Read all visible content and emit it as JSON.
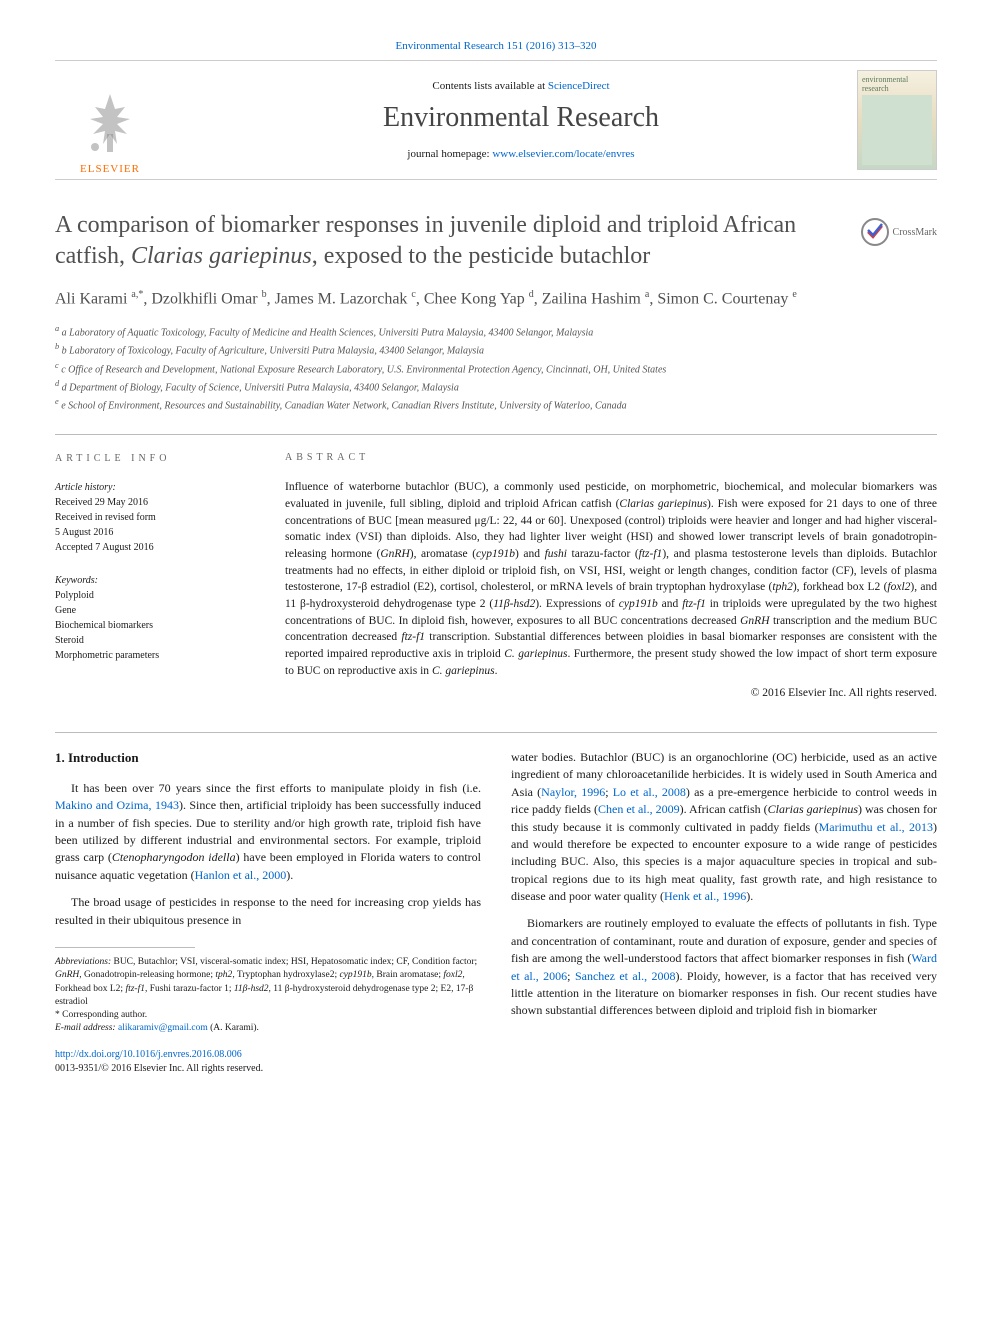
{
  "header": {
    "top_link": "Environmental Research 151 (2016) 313–320",
    "contents_prefix": "Contents lists available at ",
    "contents_link": "ScienceDirect",
    "journal": "Environmental Research",
    "homepage_prefix": "journal homepage: ",
    "homepage_link": "www.elsevier.com/locate/envres",
    "elsevier_label": "ELSEVIER",
    "cover_title": "environmental research"
  },
  "crossmark": {
    "label": "CrossMark"
  },
  "article": {
    "title_html": "A comparison of biomarker responses in juvenile diploid and triploid African catfish, <em>Clarias gariepinus</em>, exposed to the pesticide butachlor",
    "authors_html": "Ali Karami <sup>a,*</sup>, Dzolkhifli Omar <sup>b</sup>, James M. Lazorchak <sup>c</sup>, Chee Kong Yap <sup>d</sup>, Zailina Hashim <sup>a</sup>, Simon C. Courtenay <sup>e</sup>",
    "affiliations": [
      "a Laboratory of Aquatic Toxicology, Faculty of Medicine and Health Sciences, Universiti Putra Malaysia, 43400 Selangor, Malaysia",
      "b Laboratory of Toxicology, Faculty of Agriculture, Universiti Putra Malaysia, 43400 Selangor, Malaysia",
      "c Office of Research and Development, National Exposure Research Laboratory, U.S. Environmental Protection Agency, Cincinnati, OH, United States",
      "d Department of Biology, Faculty of Science, Universiti Putra Malaysia, 43400 Selangor, Malaysia",
      "e School of Environment, Resources and Sustainability, Canadian Water Network, Canadian Rivers Institute, University of Waterloo, Canada"
    ]
  },
  "info": {
    "article_info_heading": "ARTICLE INFO",
    "history_label": "Article history:",
    "history_lines": [
      "Received 29 May 2016",
      "Received in revised form",
      "5 August 2016",
      "Accepted 7 August 2016"
    ],
    "keywords_label": "Keywords:",
    "keywords": [
      "Polyploid",
      "Gene",
      "Biochemical biomarkers",
      "Steroid",
      "Morphometric parameters"
    ]
  },
  "abstract": {
    "heading": "ABSTRACT",
    "body_html": "Influence of waterborne butachlor (BUC), a commonly used pesticide, on morphometric, biochemical, and molecular biomarkers was evaluated in juvenile, full sibling, diploid and triploid African catfish (<em>Clarias gariepinus</em>). Fish were exposed for 21 days to one of three concentrations of BUC [mean measured μg/L: 22, 44 or 60]. Unexposed (control) triploids were heavier and longer and had higher visceral-somatic index (VSI) than diploids. Also, they had lighter liver weight (HSI) and showed lower transcript levels of brain gonadotropin-releasing hormone (<em>GnRH</em>), aromatase (<em>cyp191b</em>) and <em>fushi</em> tarazu-factor (<em>ftz-f1</em>), and plasma testosterone levels than diploids. Butachlor treatments had no effects, in either diploid or triploid fish, on VSI, HSI, weight or length changes, condition factor (CF), levels of plasma testosterone, 17-β estradiol (E2), cortisol, cholesterol, or mRNA levels of brain tryptophan hydroxylase (<em>tph2</em>), forkhead box L2 (<em>foxl2</em>), and 11 β-hydroxysteroid dehydrogenase type 2 (<em>11β-hsd2</em>). Expressions of <em>cyp191b</em> and <em>ftz-f1</em> in triploids were upregulated by the two highest concentrations of BUC. In diploid fish, however, exposures to all BUC concentrations decreased <em>GnRH</em> transcription and the medium BUC concentration decreased <em>ftz-f1</em> transcription. Substantial differences between ploidies in basal biomarker responses are consistent with the reported impaired reproductive axis in triploid <em>C. gariepinus</em>. Furthermore, the present study showed the low impact of short term exposure to BUC on reproductive axis in <em>C. gariepinus</em>.",
    "copyright": "© 2016 Elsevier Inc. All rights reserved."
  },
  "body": {
    "section1_heading": "1. Introduction",
    "p1_html": "It has been over 70 years since the first efforts to manipulate ploidy in fish (i.e. <a href='#'>Makino and Ozima, 1943</a>). Since then, artificial triploidy has been successfully induced in a number of fish species. Due to sterility and/or high growth rate, triploid fish have been utilized by different industrial and environmental sectors. For example, triploid grass carp (<em>Ctenopharyngodon idella</em>) have been employed in Florida waters to control nuisance aquatic vegetation (<a href='#'>Hanlon et al., 2000</a>).",
    "p2_html": "The broad usage of pesticides in response to the need for increasing crop yields has resulted in their ubiquitous presence in",
    "p3_html": "water bodies. Butachlor (BUC) is an organochlorine (OC) herbicide, used as an active ingredient of many chloroacetanilide herbicides. It is widely used in South America and Asia (<a href='#'>Naylor, 1996</a>; <a href='#'>Lo et al., 2008</a>) as a pre-emergence herbicide to control weeds in rice paddy fields (<a href='#'>Chen et al., 2009</a>). African catfish (<em>Clarias gariepinus</em>) was chosen for this study because it is commonly cultivated in paddy fields (<a href='#'>Marimuthu et al., 2013</a>) and would therefore be expected to encounter exposure to a wide range of pesticides including BUC. Also, this species is a major aquaculture species in tropical and sub-tropical regions due to its high meat quality, fast growth rate, and high resistance to disease and poor water quality (<a href='#'>Henk et al., 1996</a>).",
    "p4_html": "Biomarkers are routinely employed to evaluate the effects of pollutants in fish. Type and concentration of contaminant, route and duration of exposure, gender and species of fish are among the well-understood factors that affect biomarker responses in fish (<a href='#'>Ward et al., 2006</a>; <a href='#'>Sanchez et al., 2008</a>). Ploidy, however, is a factor that has received very little attention in the literature on biomarker responses in fish. Our recent studies have shown substantial differences between diploid and triploid fish in biomarker"
  },
  "footnotes": {
    "abbrev_html": "<em>Abbreviations:</em> BUC, Butachlor; VSI, visceral-somatic index; HSI, Hepatosomatic index; CF, Condition factor; <em>GnRH</em>, Gonadotropin-releasing hormone; <em>tph2</em>, Tryptophan hydroxylase2; <em>cyp191b</em>, Brain aromatase; <em>foxl2</em>, Forkhead box L2; <em>ftz-f1</em>, Fushi tarazu-factor 1; <em>11β-hsd2</em>, 11 β-hydroxysteroid dehydrogenase type 2; E2, 17-β estradiol",
    "corresponding": "* Corresponding author.",
    "email_label": "E-mail address: ",
    "email": "alikaramiv@gmail.com",
    "email_suffix": " (A. Karami)."
  },
  "doi": {
    "link": "http://dx.doi.org/10.1016/j.envres.2016.08.006",
    "issn": "0013-9351/© 2016 Elsevier Inc. All rights reserved."
  },
  "colors": {
    "link": "#0066cc",
    "elsevier_orange": "#ff6b00",
    "text_gray": "#505050",
    "border_gray": "#bbbbbb"
  }
}
